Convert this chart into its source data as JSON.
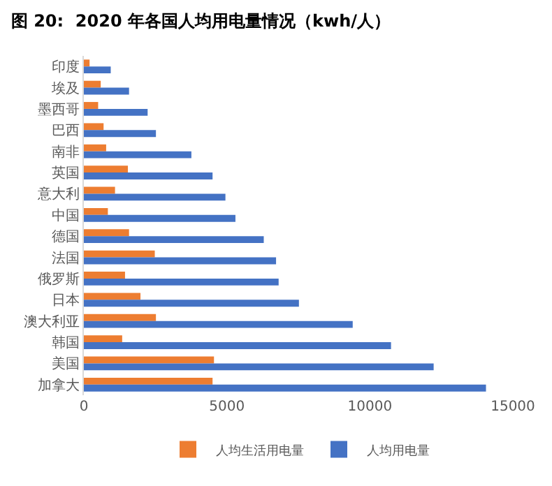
{
  "chart_data": {
    "type": "bar",
    "orientation": "horizontal",
    "title": "图 20:  2020 年各国人均用电量情况（kwh/人）",
    "categories": [
      "印度",
      "埃及",
      "墨西哥",
      "巴西",
      "南非",
      "英国",
      "意大利",
      "中国",
      "德国",
      "法国",
      "俄罗斯",
      "日本",
      "澳大利亚",
      "韩国",
      "美国",
      "加拿大"
    ],
    "series": [
      {
        "name": "人均生活用电量",
        "color": "#ed7d31",
        "values": [
          200,
          590,
          500,
          690,
          780,
          1540,
          1090,
          840,
          1580,
          2480,
          1440,
          1980,
          2520,
          1340,
          4550,
          4500
        ]
      },
      {
        "name": "人均用电量",
        "color": "#4472c4",
        "values": [
          940,
          1580,
          2230,
          2520,
          3760,
          4500,
          4950,
          5300,
          6290,
          6720,
          6810,
          7520,
          9400,
          10740,
          12230,
          14060
        ]
      }
    ],
    "xlim": [
      0,
      15000
    ],
    "xticks": [
      0,
      5000,
      10000,
      15000
    ],
    "grid": false,
    "legend": "bottom"
  }
}
